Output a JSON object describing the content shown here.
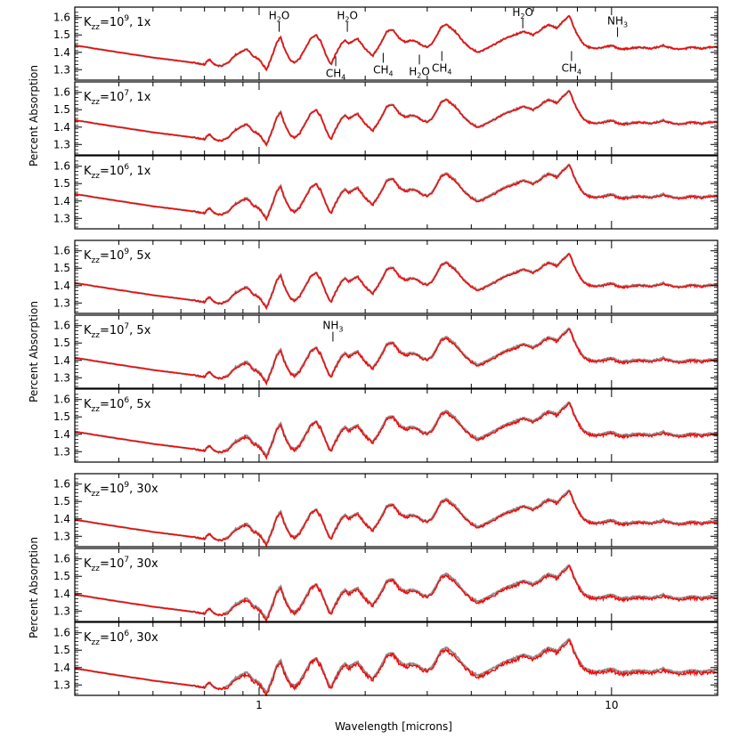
{
  "chart_data": {
    "type": "line",
    "xlabel": "Wavelength [microns]",
    "ylabel": "Percent Absorption",
    "xscale": "log",
    "xlim": [
      0.3,
      20
    ],
    "xticks": [
      1,
      10
    ],
    "xtick_labels": [
      "1",
      "10"
    ],
    "yticks": [
      1.3,
      1.4,
      1.5,
      1.6
    ],
    "ytick_labels": [
      "1.3",
      "1.4",
      "1.5",
      "1.6"
    ],
    "series_colors": {
      "model": "#ff0000",
      "reference": "#909090"
    },
    "groups": [
      {
        "metallicity": "1x",
        "ylim": [
          1.24,
          1.66
        ]
      },
      {
        "metallicity": "5x",
        "ylim": [
          1.24,
          1.66
        ]
      },
      {
        "metallicity": "30x",
        "ylim": [
          1.24,
          1.66
        ]
      }
    ],
    "panels": [
      {
        "label_k": "K",
        "label_sub": "zz",
        "label_eq": "=10",
        "label_exp": "9",
        "label_rest": ", 1x",
        "baseline": 0.0,
        "deviation": 0.0
      },
      {
        "label_k": "K",
        "label_sub": "zz",
        "label_eq": "=10",
        "label_exp": "7",
        "label_rest": ", 1x",
        "baseline": 0.0,
        "deviation": 0.004
      },
      {
        "label_k": "K",
        "label_sub": "zz",
        "label_eq": "=10",
        "label_exp": "6",
        "label_rest": ", 1x",
        "baseline": 0.0,
        "deviation": 0.007
      },
      {
        "label_k": "K",
        "label_sub": "zz",
        "label_eq": "=10",
        "label_exp": "9",
        "label_rest": ", 5x",
        "baseline": -0.025,
        "deviation": 0.006
      },
      {
        "label_k": "K",
        "label_sub": "zz",
        "label_eq": "=10",
        "label_exp": "7",
        "label_rest": ", 5x",
        "baseline": -0.025,
        "deviation": 0.01
      },
      {
        "label_k": "K",
        "label_sub": "zz",
        "label_eq": "=10",
        "label_exp": "6",
        "label_rest": ", 5x",
        "baseline": -0.025,
        "deviation": 0.012
      },
      {
        "label_k": "K",
        "label_sub": "zz",
        "label_eq": "=10",
        "label_exp": "9",
        "label_rest": ", 30x",
        "baseline": -0.045,
        "deviation": 0.01
      },
      {
        "label_k": "K",
        "label_sub": "zz",
        "label_eq": "=10",
        "label_exp": "7",
        "label_rest": ", 30x",
        "baseline": -0.045,
        "deviation": 0.014
      },
      {
        "label_k": "K",
        "label_sub": "zz",
        "label_eq": "=10",
        "label_exp": "6",
        "label_rest": ", 30x",
        "baseline": -0.045,
        "deviation": 0.018
      }
    ],
    "spectrum_base": {
      "x": [
        0.3,
        0.4,
        0.5,
        0.6,
        0.65,
        0.7,
        0.72,
        0.75,
        0.78,
        0.82,
        0.85,
        0.88,
        0.92,
        0.96,
        1.0,
        1.05,
        1.08,
        1.12,
        1.15,
        1.18,
        1.22,
        1.26,
        1.3,
        1.35,
        1.4,
        1.45,
        1.5,
        1.55,
        1.6,
        1.65,
        1.7,
        1.75,
        1.8,
        1.9,
        2.0,
        2.1,
        2.2,
        2.3,
        2.4,
        2.5,
        2.6,
        2.7,
        2.8,
        2.9,
        3.0,
        3.1,
        3.2,
        3.3,
        3.4,
        3.6,
        3.8,
        4.0,
        4.2,
        4.5,
        4.8,
        5.0,
        5.3,
        5.6,
        6.0,
        6.3,
        6.6,
        7.0,
        7.3,
        7.6,
        7.8,
        8.0,
        8.3,
        8.6,
        9.0,
        9.5,
        10.0,
        10.5,
        11.0,
        12.0,
        13.0,
        14.0,
        15.0,
        16.0,
        17.0,
        18.0,
        19.0,
        20.0
      ],
      "y": [
        1.44,
        1.4,
        1.37,
        1.35,
        1.34,
        1.33,
        1.36,
        1.33,
        1.32,
        1.34,
        1.38,
        1.4,
        1.42,
        1.38,
        1.36,
        1.3,
        1.36,
        1.45,
        1.49,
        1.42,
        1.36,
        1.34,
        1.36,
        1.42,
        1.48,
        1.5,
        1.46,
        1.38,
        1.33,
        1.39,
        1.44,
        1.47,
        1.45,
        1.48,
        1.42,
        1.38,
        1.44,
        1.52,
        1.53,
        1.48,
        1.46,
        1.47,
        1.46,
        1.44,
        1.43,
        1.45,
        1.5,
        1.55,
        1.56,
        1.52,
        1.46,
        1.42,
        1.4,
        1.43,
        1.46,
        1.48,
        1.5,
        1.52,
        1.5,
        1.53,
        1.56,
        1.54,
        1.58,
        1.61,
        1.55,
        1.5,
        1.45,
        1.43,
        1.42,
        1.43,
        1.44,
        1.42,
        1.42,
        1.43,
        1.42,
        1.44,
        1.42,
        1.42,
        1.43,
        1.42,
        1.43,
        1.43
      ]
    },
    "annotations": [
      {
        "text": "H",
        "sub": "2",
        "rest": "O",
        "panel": 0,
        "x": 1.14,
        "y": 1.59
      },
      {
        "text": "H",
        "sub": "2",
        "rest": "O",
        "panel": 0,
        "x": 1.78,
        "y": 1.59
      },
      {
        "text": "CH",
        "sub": "4",
        "rest": "",
        "panel": 0,
        "x": 1.65,
        "y": 1.31
      },
      {
        "text": "CH",
        "sub": "4",
        "rest": "",
        "panel": 0,
        "x": 2.25,
        "y": 1.33
      },
      {
        "text": "H",
        "sub": "2",
        "rest": "O",
        "panel": 0,
        "x": 2.85,
        "y": 1.32
      },
      {
        "text": "CH",
        "sub": "4",
        "rest": "",
        "panel": 0,
        "x": 3.3,
        "y": 1.34
      },
      {
        "text": "H",
        "sub": "2",
        "rest": "O",
        "panel": 0,
        "x": 5.6,
        "y": 1.61
      },
      {
        "text": "CH",
        "sub": "4",
        "rest": "",
        "panel": 0,
        "x": 7.7,
        "y": 1.34
      },
      {
        "text": "NH",
        "sub": "3",
        "rest": "",
        "panel": 0,
        "x": 10.4,
        "y": 1.56
      },
      {
        "text": "NH",
        "sub": "3",
        "rest": "",
        "panel": 4,
        "x": 1.62,
        "y": 1.58
      }
    ]
  }
}
